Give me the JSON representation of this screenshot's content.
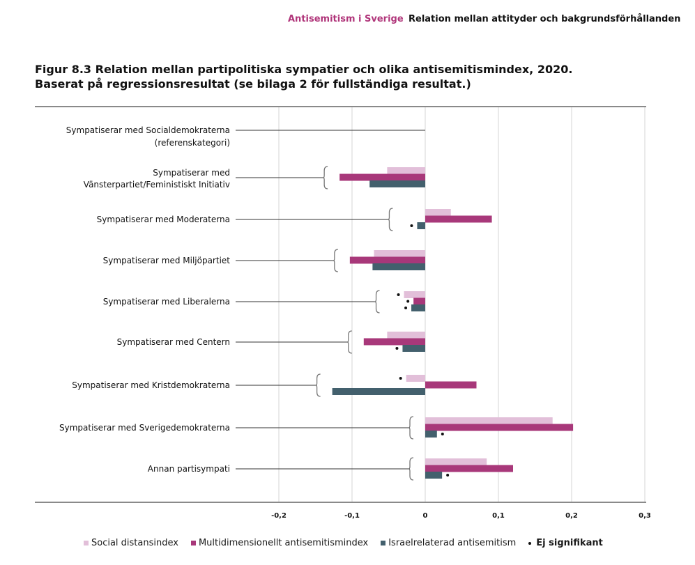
{
  "header": {
    "section": "Antisemitism i Sverige",
    "chapter_title": "Relation mellan attityder och bakgrundsförhållanden"
  },
  "colors": {
    "section_accent": "#b0357a",
    "social": "#e2bfd9",
    "multi": "#a8387a",
    "israel": "#43606d",
    "grid": "#e3e3e3",
    "axis": "#8a8a8a"
  },
  "chart_data": {
    "type": "bar",
    "orientation": "horizontal",
    "title_line1": "Figur 8.3 Relation mellan partipolitiska sympatier och olika antisemitismindex, 2020.",
    "title_line2": "Baserat på regressionsresultat (se bilaga 2 för fullständiga resultat.)",
    "xlabel": "",
    "ylabel": "",
    "xlim": [
      -0.2,
      0.3
    ],
    "xticks": [
      -0.2,
      -0.1,
      0,
      0.1,
      0.2,
      0.3
    ],
    "xtick_labels": [
      "-0,2",
      "-0,1",
      "0",
      "0,1",
      "0,2",
      "0,3"
    ],
    "grid": true,
    "legend_position": "bottom",
    "categories": [
      {
        "label": "Sympatiserar med Socialdemokraterna",
        "label2": "(referenskategori)",
        "reference": true
      },
      {
        "label": "Sympatiserar med",
        "label2": "Vänsterpartiet/Feministiskt Initiativ"
      },
      {
        "label": "Sympatiserar med Moderaterna"
      },
      {
        "label": "Sympatiserar med Miljöpartiet"
      },
      {
        "label": "Sympatiserar med Liberalerna"
      },
      {
        "label": "Sympatiserar med Centern"
      },
      {
        "label": "Sympatiserar med Kristdemokraterna"
      },
      {
        "label": "Sympatiserar med Sverigedemokraterna"
      },
      {
        "label": "Annan partisympati"
      }
    ],
    "series": [
      {
        "name": "Social distansindex",
        "key": "social",
        "values": [
          null,
          -0.052,
          0.035,
          -0.07,
          -0.029,
          -0.052,
          -0.026,
          0.174,
          0.084
        ],
        "not_significant": [
          false,
          false,
          false,
          false,
          true,
          false,
          true,
          false,
          false
        ]
      },
      {
        "name": "Multidimensionellt antisemitismindex",
        "key": "multi",
        "values": [
          null,
          -0.117,
          0.091,
          -0.103,
          -0.016,
          -0.084,
          0.07,
          0.202,
          0.12
        ],
        "not_significant": [
          false,
          false,
          false,
          false,
          true,
          false,
          false,
          false,
          false
        ]
      },
      {
        "name": "Israelrelaterad antisemitism",
        "key": "israel",
        "values": [
          null,
          -0.076,
          -0.011,
          -0.072,
          -0.019,
          -0.031,
          -0.127,
          0.016,
          0.023
        ],
        "not_significant": [
          false,
          false,
          true,
          false,
          true,
          true,
          false,
          true,
          true
        ]
      }
    ],
    "legend_ns_label": "Ej signifikant"
  }
}
